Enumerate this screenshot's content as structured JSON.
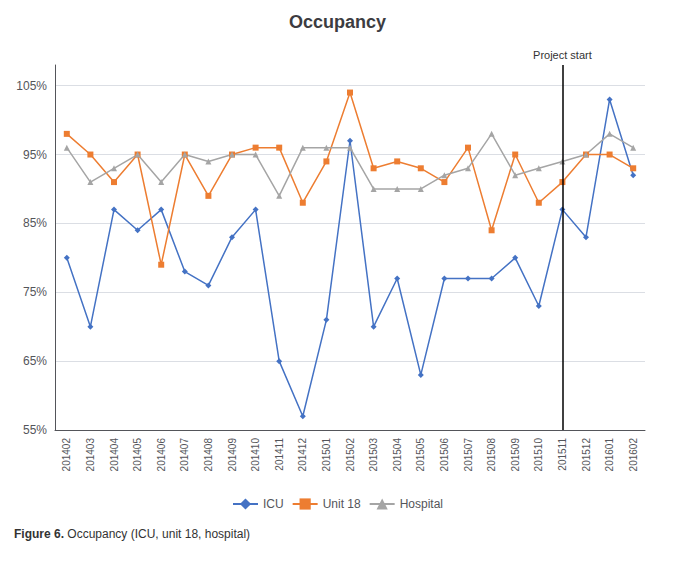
{
  "chart_data": {
    "type": "line",
    "title": "Occupancy",
    "categories": [
      "201402",
      "201403",
      "201404",
      "201405",
      "201406",
      "201407",
      "201408",
      "201409",
      "201410",
      "201411",
      "201412",
      "201501",
      "201502",
      "201503",
      "201504",
      "201505",
      "201506",
      "201507",
      "201508",
      "201509",
      "201510",
      "201511",
      "201512",
      "201601",
      "201602"
    ],
    "series": [
      {
        "name": "ICU",
        "color": "#4472C4",
        "marker": "diamond",
        "values": [
          0.8,
          0.7,
          0.87,
          0.84,
          0.87,
          0.78,
          0.76,
          0.83,
          0.87,
          0.65,
          0.57,
          0.71,
          0.97,
          0.7,
          0.77,
          0.63,
          0.77,
          0.77,
          0.77,
          0.8,
          0.73,
          0.87,
          0.83,
          1.03,
          0.92
        ]
      },
      {
        "name": "Unit 18",
        "color": "#ED7D31",
        "marker": "square",
        "values": [
          0.98,
          0.95,
          0.91,
          0.95,
          0.79,
          0.95,
          0.89,
          0.95,
          0.96,
          0.96,
          0.88,
          0.94,
          1.04,
          0.93,
          0.94,
          0.93,
          0.91,
          0.96,
          0.84,
          0.95,
          0.88,
          0.91,
          0.95,
          0.95,
          0.93
        ]
      },
      {
        "name": "Hospital",
        "color": "#A5A5A5",
        "marker": "triangle",
        "values": [
          0.96,
          0.91,
          0.93,
          0.95,
          0.91,
          0.95,
          0.94,
          0.95,
          0.95,
          0.89,
          0.96,
          0.96,
          0.96,
          0.9,
          0.9,
          0.9,
          0.92,
          0.93,
          0.98,
          0.92,
          0.93,
          0.94,
          0.95,
          0.98,
          0.96
        ]
      }
    ],
    "ylim": [
      0.55,
      1.08
    ],
    "yticks": [
      {
        "value": 0.55,
        "label": "55%"
      },
      {
        "value": 0.65,
        "label": "65%"
      },
      {
        "value": 0.75,
        "label": "75%"
      },
      {
        "value": 0.85,
        "label": "85%"
      },
      {
        "value": 0.95,
        "label": "95%"
      },
      {
        "value": 1.05,
        "label": "105%"
      }
    ],
    "annotations": [
      {
        "x": "201511",
        "text": "Project start"
      }
    ],
    "caption_bold": "Figure 6.",
    "caption": " Occupancy (ICU, unit 18, hospital)",
    "grid": true,
    "legend": "bottom"
  }
}
